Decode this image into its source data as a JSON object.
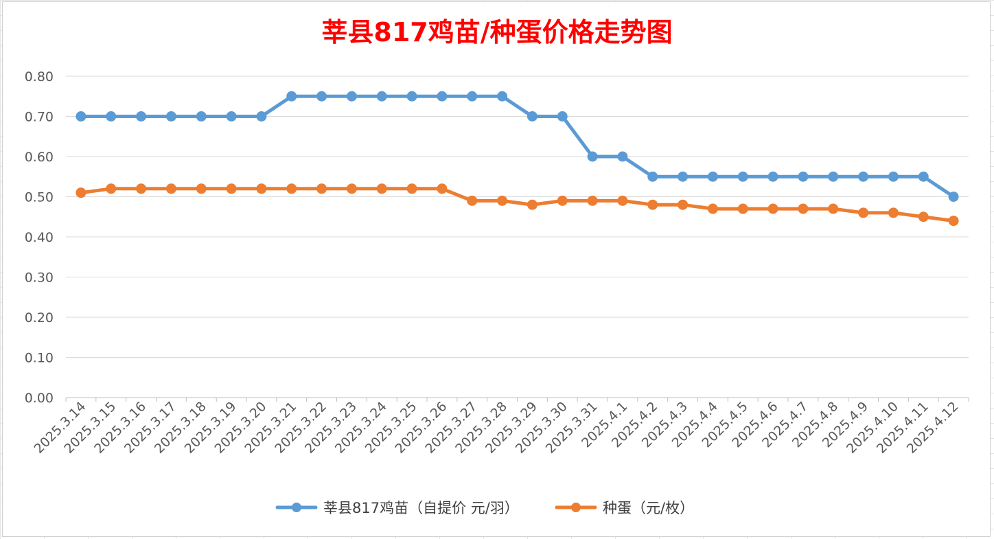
{
  "chart_data": {
    "type": "line",
    "title": "莘县817鸡苗/种蛋价格走势图",
    "categories": [
      "2025.3.14",
      "2025.3.15",
      "2025.3.16",
      "2025.3.17",
      "2025.3.18",
      "2025.3.19",
      "2025.3.20",
      "2025.3.21",
      "2025.3.22",
      "2025.3.23",
      "2025.3.24",
      "2025.3.25",
      "2025.3.26",
      "2025.3.27",
      "2025.3.28",
      "2025.3.29",
      "2025.3.30",
      "2025.3.31",
      "2025.4.1",
      "2025.4.2",
      "2025.4.3",
      "2025.4.4",
      "2025.4.5",
      "2025.4.6",
      "2025.4.7",
      "2025.4.8",
      "2025.4.9",
      "2025.4.10",
      "2025.4.11",
      "2025.4.12"
    ],
    "series": [
      {
        "name": "莘县817鸡苗（自提价 元/羽）",
        "color": "#5b9bd5",
        "values": [
          0.7,
          0.7,
          0.7,
          0.7,
          0.7,
          0.7,
          0.7,
          0.75,
          0.75,
          0.75,
          0.75,
          0.75,
          0.75,
          0.75,
          0.75,
          0.7,
          0.7,
          0.6,
          0.6,
          0.55,
          0.55,
          0.55,
          0.55,
          0.55,
          0.55,
          0.55,
          0.55,
          0.55,
          0.55,
          0.5
        ]
      },
      {
        "name": "种蛋（元/枚）",
        "color": "#ed7d31",
        "values": [
          0.51,
          0.52,
          0.52,
          0.52,
          0.52,
          0.52,
          0.52,
          0.52,
          0.52,
          0.52,
          0.52,
          0.52,
          0.52,
          0.49,
          0.49,
          0.48,
          0.49,
          0.49,
          0.49,
          0.48,
          0.48,
          0.47,
          0.47,
          0.47,
          0.47,
          0.47,
          0.46,
          0.46,
          0.45,
          0.44
        ]
      }
    ],
    "yticks": [
      "0.00",
      "0.10",
      "0.20",
      "0.30",
      "0.40",
      "0.50",
      "0.60",
      "0.70",
      "0.80"
    ],
    "ylim": [
      0,
      0.8
    ],
    "grid": "horizontal",
    "legend_position": "bottom",
    "title_color": "#ff0000"
  }
}
